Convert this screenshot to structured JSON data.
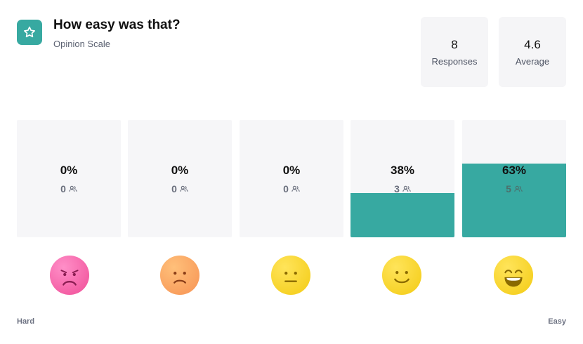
{
  "header": {
    "icon": "star-icon",
    "title": "How easy was that?",
    "subtitle": "Opinion Scale"
  },
  "stats": {
    "responses": {
      "value": "8",
      "label": "Responses"
    },
    "average": {
      "value": "4.6",
      "label": "Average"
    }
  },
  "options": [
    {
      "percent": "0%",
      "count": "0",
      "fill": 0,
      "face": "very-sad-face-icon"
    },
    {
      "percent": "0%",
      "count": "0",
      "fill": 0,
      "face": "sad-face-icon"
    },
    {
      "percent": "0%",
      "count": "0",
      "fill": 0,
      "face": "neutral-face-icon"
    },
    {
      "percent": "38%",
      "count": "3",
      "fill": 0.38,
      "face": "smile-face-icon"
    },
    {
      "percent": "63%",
      "count": "5",
      "fill": 0.63,
      "face": "grin-face-icon"
    }
  ],
  "scale": {
    "low": "Hard",
    "high": "Easy"
  },
  "colors": {
    "accent": "#37a9a1",
    "card": "#f6f6f8"
  }
}
